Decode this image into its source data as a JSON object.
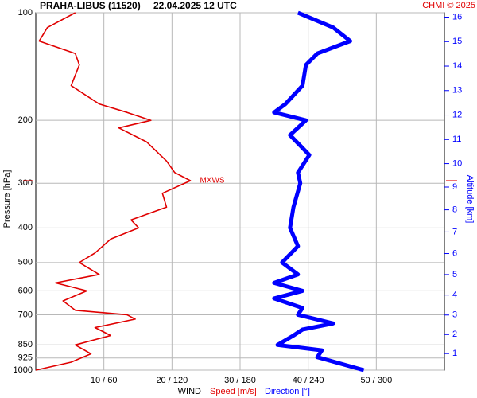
{
  "chart_data": {
    "type": "line",
    "station": "PRAHA-LIBUS (11520)",
    "datetime": "22.04.2025 12 UTC",
    "credit": "CHMI © 2025",
    "ylabel": "Pressure [hPa]",
    "y2label": "Altitude [km]",
    "xlabel": "WIND",
    "ylim": [
      100,
      1000
    ],
    "log_y": true,
    "yticks": [
      100,
      200,
      300,
      400,
      500,
      600,
      700,
      850,
      925,
      1000
    ],
    "y2ticks": [
      1,
      2,
      3,
      4,
      5,
      6,
      7,
      8,
      9,
      10,
      11,
      12,
      13,
      14,
      15,
      16
    ],
    "xlim": [
      0,
      60
    ],
    "x2lim": [
      0,
      360
    ],
    "xticks": [
      {
        "value": 10,
        "label": "10 / 60"
      },
      {
        "value": 20,
        "label": "20 / 120"
      },
      {
        "value": 30,
        "label": "30 / 180"
      },
      {
        "value": 40,
        "label": "40 / 240"
      },
      {
        "value": 50,
        "label": "50 / 300"
      }
    ],
    "grid": true,
    "annotation": {
      "text": "MXWS",
      "pressure": 295
    },
    "series": [
      {
        "name": "Speed [m/s]",
        "color": "#e00000",
        "axis": "x",
        "pressure": [
          100,
          110,
          120,
          130,
          140,
          160,
          180,
          190,
          200,
          210,
          230,
          260,
          280,
          295,
          320,
          350,
          380,
          400,
          430,
          470,
          500,
          540,
          570,
          600,
          640,
          680,
          700,
          720,
          760,
          800,
          850,
          900,
          950,
          1000
        ],
        "values": [
          5.8,
          1.7,
          0.5,
          5.8,
          6.4,
          5.2,
          9.3,
          13.4,
          16.9,
          12.2,
          16.3,
          19.2,
          20.4,
          22.7,
          18.6,
          19.2,
          14,
          15.1,
          11,
          8.7,
          6.4,
          9.3,
          2.9,
          7.5,
          4,
          5.8,
          13.4,
          14.6,
          8.7,
          11,
          5.8,
          8.1,
          5.2,
          0
        ]
      },
      {
        "name": "Direction [°]",
        "color": "#0000ff",
        "axis": "x2",
        "pressure": [
          100,
          110,
          120,
          130,
          140,
          160,
          180,
          190,
          200,
          220,
          250,
          280,
          300,
          350,
          400,
          450,
          500,
          540,
          570,
          600,
          630,
          670,
          700,
          740,
          770,
          800,
          850,
          880,
          920,
          1000
        ],
        "values": [
          231,
          262,
          277,
          248,
          238,
          235,
          220,
          210,
          238,
          224,
          241,
          231,
          233,
          227,
          224,
          231,
          217,
          231,
          210,
          235,
          210,
          235,
          231,
          262,
          235,
          227,
          213,
          252,
          248,
          289
        ]
      }
    ]
  }
}
